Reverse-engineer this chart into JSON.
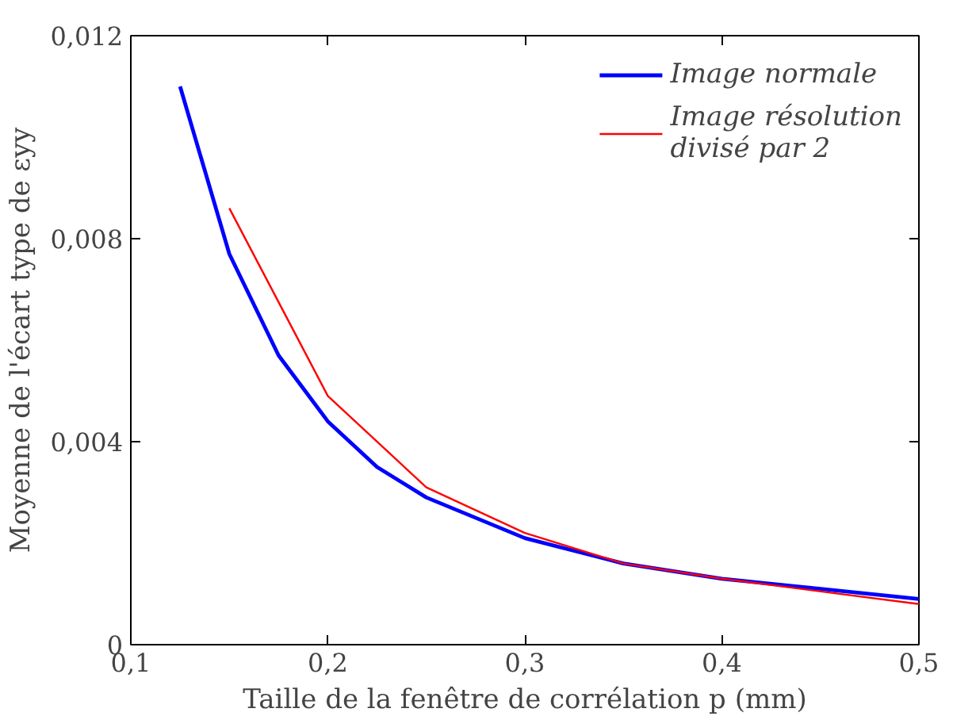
{
  "chart_data": {
    "type": "line",
    "xlabel": "Taille de la fenêtre de corrélation p (mm)",
    "ylabel": "Moyenne de l'écart type de εyy",
    "series": [
      {
        "name": "Image normale",
        "color": "#0000ff",
        "x": [
          0.125,
          0.15,
          0.175,
          0.2,
          0.225,
          0.25,
          0.3,
          0.35,
          0.4,
          0.5
        ],
        "values": [
          0.011,
          0.0077,
          0.0057,
          0.0044,
          0.0035,
          0.0029,
          0.0021,
          0.0016,
          0.0013,
          0.0009
        ]
      },
      {
        "name": "Image résolution\ndivisé par 2",
        "color": "#ff0000",
        "x": [
          0.15,
          0.2,
          0.25,
          0.3,
          0.35,
          0.4,
          0.5
        ],
        "values": [
          0.0086,
          0.0049,
          0.0031,
          0.0022,
          0.0016,
          0.0013,
          0.0008
        ]
      }
    ],
    "xlim": [
      0.1,
      0.5
    ],
    "xticks": [
      {
        "value": 0.1,
        "label": "0,1"
      },
      {
        "value": 0.2,
        "label": "0,2"
      },
      {
        "value": 0.3,
        "label": "0,3"
      },
      {
        "value": 0.4,
        "label": "0,4"
      },
      {
        "value": 0.5,
        "label": "0,5"
      }
    ],
    "ylim": [
      0,
      0.012
    ],
    "yticks": [
      0,
      {
        "value": 0.004,
        "label": "0,004"
      },
      {
        "value": 0.008,
        "label": "0,008"
      },
      {
        "value": 0.012,
        "label": "0,012"
      }
    ],
    "grid": false,
    "legend": "top right",
    "marker": "none",
    "line_style": "solid"
  }
}
